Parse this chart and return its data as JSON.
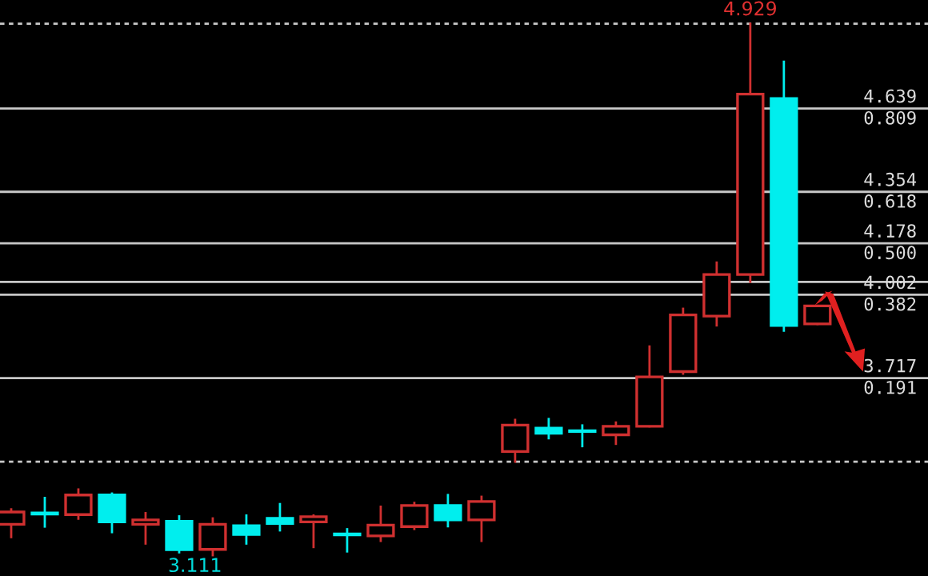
{
  "chart_data": {
    "type": "candlestick",
    "categories": [
      null,
      null,
      null,
      null,
      null,
      null,
      null,
      null,
      null,
      null,
      null,
      null,
      null,
      null,
      null,
      null,
      null,
      null,
      null,
      null,
      null,
      null,
      null,
      null,
      null
    ],
    "ohlc": [
      [
        3.217,
        3.268,
        3.173,
        3.259
      ],
      [
        3.256,
        3.307,
        3.209,
        3.252
      ],
      [
        3.25,
        3.336,
        3.236,
        3.317
      ],
      [
        3.317,
        3.322,
        3.19,
        3.225
      ],
      [
        3.217,
        3.255,
        3.151,
        3.232
      ],
      [
        3.227,
        3.244,
        3.121,
        3.13
      ],
      [
        3.131,
        3.237,
        3.111,
        3.217
      ],
      [
        3.212,
        3.247,
        3.151,
        3.182
      ],
      [
        3.237,
        3.286,
        3.196,
        3.22
      ],
      [
        3.225,
        3.247,
        3.139,
        3.243
      ],
      [
        3.184,
        3.2,
        3.124,
        3.181
      ],
      [
        3.177,
        3.277,
        3.16,
        3.214
      ],
      [
        3.209,
        3.29,
        3.201,
        3.281
      ],
      [
        3.281,
        3.317,
        3.21,
        3.232
      ],
      [
        3.232,
        3.311,
        3.16,
        3.295
      ],
      [
        3.466,
        3.574,
        3.431,
        3.556
      ],
      [
        3.546,
        3.577,
        3.511,
        3.528
      ],
      [
        3.537,
        3.555,
        3.484,
        3.534
      ],
      [
        3.523,
        3.565,
        3.492,
        3.552
      ],
      [
        3.552,
        3.825,
        3.552,
        3.721
      ],
      [
        3.739,
        3.954,
        3.732,
        3.933
      ],
      [
        3.929,
        4.112,
        3.897,
        4.071
      ],
      [
        4.071,
        4.929,
        4.046,
        4.688
      ],
      [
        4.673,
        4.799,
        3.879,
        3.897
      ],
      [
        3.902,
        3.964,
        3.902,
        3.964
      ]
    ],
    "colors": [
      "#d03030",
      "#00eeee",
      "#d03030",
      "#00eeee",
      "#d03030",
      "#00eeee",
      "#d03030",
      "#00eeee",
      "#00eeee",
      "#d03030",
      "#00eeee",
      "#d03030",
      "#d03030",
      "#00eeee",
      "#d03030",
      "#d03030",
      "#00eeee",
      "#00eeee",
      "#d03030",
      "#d03030",
      "#d03030",
      "#d03030",
      "#d03030",
      "#00eeee",
      "#d03030"
    ],
    "ylim": [
      3.04,
      5.01
    ],
    "grid": false,
    "ref_lines": [
      {
        "axis": "y",
        "value": 4.929,
        "line_style": "dotted",
        "color": "#c8c8c8"
      },
      {
        "axis": "y",
        "value": 4.639,
        "label": "4.639\n0.809",
        "color": "#c8c8c8"
      },
      {
        "axis": "y",
        "value": 4.354,
        "label": "4.354\n0.618",
        "color": "#c8c8c8"
      },
      {
        "axis": "y",
        "value": 4.178,
        "label": "4.178\n0.500",
        "color": "#c8c8c8"
      },
      {
        "axis": "y",
        "value": 4.046,
        "color": "#c8c8c8"
      },
      {
        "axis": "y",
        "value": 4.002,
        "label": "4.002\n0.382",
        "color": "#c8c8c8"
      },
      {
        "axis": "y",
        "value": 3.717,
        "label": "3.717\n0.191",
        "color": "#c8c8c8"
      },
      {
        "axis": "y",
        "value": 3.431,
        "line_style": "dotted",
        "color": "#c8c8c8"
      }
    ],
    "annotations": [
      {
        "text": "4.929",
        "y": 4.929
      },
      {
        "text": "3.111",
        "y": 3.111
      }
    ]
  }
}
